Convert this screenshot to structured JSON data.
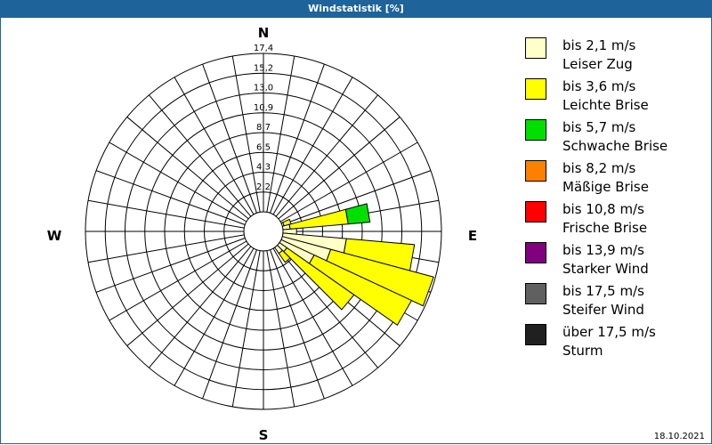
{
  "title": "Windstatistik [%]",
  "date": "18.10.2021",
  "chart_data": {
    "type": "windrose",
    "title": "Windstatistik [%]",
    "unit": "%",
    "compass_labels": {
      "N": "N",
      "E": "E",
      "S": "S",
      "W": "W"
    },
    "ring_labels": [
      "2,2",
      "4,3",
      "6,5",
      "8,7",
      "10,9",
      "13,0",
      "15,2",
      "17,4"
    ],
    "rmax": 17.4,
    "sector_width_deg": 10,
    "legend": [
      {
        "range": "bis 2,1 m/s",
        "name": "Leiser Zug",
        "color": "#ffffc8"
      },
      {
        "range": "bis 3,6 m/s",
        "name": "Leichte Brise",
        "color": "#ffff00"
      },
      {
        "range": "bis 5,7 m/s",
        "name": "Schwache Brise",
        "color": "#00e000"
      },
      {
        "range": "bis 8,2 m/s",
        "name": "Mäßige Brise",
        "color": "#ff8000"
      },
      {
        "range": "bis 10,8 m/s",
        "name": "Frische Brise",
        "color": "#ff0000"
      },
      {
        "range": "bis 13,9 m/s",
        "name": "Starker Wind",
        "color": "#800080"
      },
      {
        "range": "bis 17,5 m/s",
        "name": "Steifer Wind",
        "color": "#606060"
      },
      {
        "range": "über 17,5 m/s",
        "name": "Sturm",
        "color": "#202020"
      }
    ],
    "sectors": [
      {
        "direction_deg": 70,
        "cumulative": [
          0.2,
          1.0
        ]
      },
      {
        "direction_deg": 80,
        "cumulative": [
          0.8,
          7.2,
          9.6
        ]
      },
      {
        "direction_deg": 90,
        "cumulative": [
          1.5
        ]
      },
      {
        "direction_deg": 100,
        "cumulative": [
          7.0,
          14.5
        ]
      },
      {
        "direction_deg": 110,
        "cumulative": [
          5.5,
          17.2
        ]
      },
      {
        "direction_deg": 120,
        "cumulative": [
          4.0,
          15.8
        ]
      },
      {
        "direction_deg": 130,
        "cumulative": [
          1.0,
          10.0
        ]
      },
      {
        "direction_deg": 140,
        "cumulative": [
          0.8,
          2.0
        ]
      }
    ]
  }
}
